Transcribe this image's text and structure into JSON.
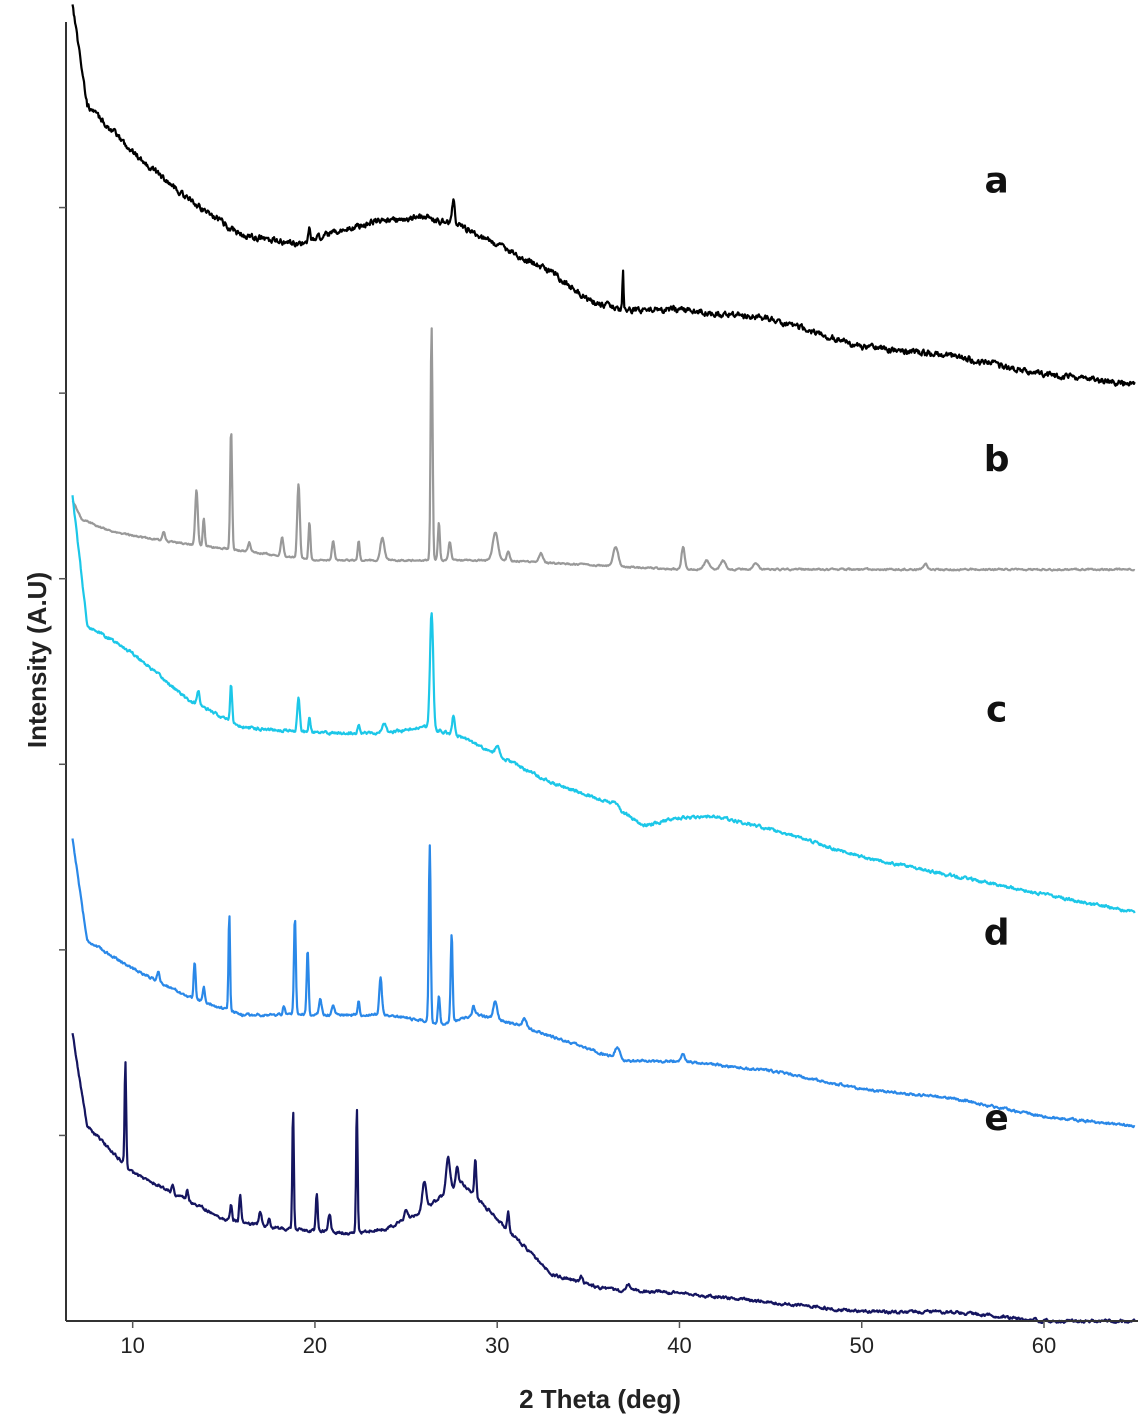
{
  "chart_data": {
    "type": "line",
    "xlabel": "2 Theta (deg)",
    "ylabel": "Intensity (A.U)",
    "xlim": [
      6.5,
      65
    ],
    "xticks": [
      10,
      20,
      30,
      40,
      50,
      60
    ],
    "ylim": [
      0,
      7
    ],
    "yticks": [
      1,
      2,
      3,
      4,
      5,
      6
    ],
    "grid": false,
    "legend": "inline labels at right",
    "series": [
      {
        "name": "a",
        "color": "#000000",
        "offset": 5.6,
        "baseline": [
          [
            6.7,
            1.5
          ],
          [
            7.5,
            0.95
          ],
          [
            10,
            0.7
          ],
          [
            13,
            0.45
          ],
          [
            16,
            0.25
          ],
          [
            19,
            0.2
          ],
          [
            23,
            0.32
          ],
          [
            26,
            0.35
          ],
          [
            28,
            0.3
          ],
          [
            30,
            0.2
          ],
          [
            33,
            0.05
          ],
          [
            35,
            -0.1
          ],
          [
            37,
            -0.15
          ],
          [
            40,
            -0.15
          ],
          [
            45,
            -0.2
          ],
          [
            50,
            -0.35
          ],
          [
            55,
            -0.4
          ],
          [
            60,
            -0.5
          ],
          [
            65,
            -0.55
          ]
        ],
        "peaks": [
          [
            19.7,
            0.06,
            0.15
          ],
          [
            27.6,
            0.12,
            0.2
          ],
          [
            36.9,
            0.2,
            0.08
          ]
        ],
        "noise": 0.03
      },
      {
        "name": "b",
        "color": "#999999",
        "offset": 4.1,
        "baseline": [
          [
            6.7,
            0.32
          ],
          [
            7.2,
            0.22
          ],
          [
            9,
            0.15
          ],
          [
            12,
            0.1
          ],
          [
            20,
            0.0
          ],
          [
            30,
            0.0
          ],
          [
            40,
            -0.05
          ],
          [
            50,
            -0.05
          ],
          [
            65,
            -0.05
          ]
        ],
        "peaks": [
          [
            11.7,
            0.05,
            0.2
          ],
          [
            13.5,
            0.3,
            0.2
          ],
          [
            13.9,
            0.15,
            0.15
          ],
          [
            15.4,
            0.65,
            0.15
          ],
          [
            16.4,
            0.05,
            0.2
          ],
          [
            18.2,
            0.1,
            0.2
          ],
          [
            19.1,
            0.4,
            0.2
          ],
          [
            19.7,
            0.2,
            0.15
          ],
          [
            21,
            0.1,
            0.2
          ],
          [
            22.4,
            0.1,
            0.15
          ],
          [
            23.7,
            0.12,
            0.3
          ],
          [
            26.4,
            1.25,
            0.15
          ],
          [
            26.8,
            0.2,
            0.15
          ],
          [
            27.4,
            0.1,
            0.2
          ],
          [
            29.9,
            0.15,
            0.4
          ],
          [
            30.6,
            0.05,
            0.2
          ],
          [
            32.4,
            0.05,
            0.3
          ],
          [
            36.5,
            0.1,
            0.4
          ],
          [
            40.2,
            0.12,
            0.25
          ],
          [
            41.5,
            0.05,
            0.4
          ],
          [
            42.4,
            0.05,
            0.4
          ],
          [
            44.2,
            0.03,
            0.4
          ],
          [
            53.5,
            0.03,
            0.3
          ]
        ],
        "noise": 0.008
      },
      {
        "name": "c",
        "color": "#1cc7e8",
        "offset": 2.75,
        "baseline": [
          [
            6.7,
            1.7
          ],
          [
            7.5,
            1.0
          ],
          [
            10,
            0.85
          ],
          [
            13,
            0.6
          ],
          [
            16,
            0.45
          ],
          [
            20,
            0.42
          ],
          [
            24,
            0.42
          ],
          [
            26,
            0.45
          ],
          [
            28,
            0.4
          ],
          [
            30,
            0.3
          ],
          [
            33,
            0.15
          ],
          [
            36,
            0.05
          ],
          [
            38,
            -0.08
          ],
          [
            40,
            -0.04
          ],
          [
            42,
            -0.03
          ],
          [
            45,
            -0.1
          ],
          [
            50,
            -0.25
          ],
          [
            55,
            -0.35
          ],
          [
            60,
            -0.45
          ],
          [
            65,
            -0.55
          ]
        ],
        "peaks": [
          [
            13.6,
            0.08,
            0.2
          ],
          [
            15.4,
            0.2,
            0.15
          ],
          [
            19.1,
            0.18,
            0.2
          ],
          [
            19.7,
            0.08,
            0.15
          ],
          [
            22.4,
            0.05,
            0.15
          ],
          [
            23.8,
            0.05,
            0.3
          ],
          [
            26.4,
            0.62,
            0.25
          ],
          [
            27.6,
            0.1,
            0.2
          ],
          [
            30,
            0.05,
            0.3
          ],
          [
            36.5,
            0.03,
            0.4
          ]
        ],
        "noise": 0.015
      },
      {
        "name": "d",
        "color": "#2a88e8",
        "offset": 1.55,
        "baseline": [
          [
            6.7,
            1.05
          ],
          [
            7.5,
            0.5
          ],
          [
            10,
            0.35
          ],
          [
            13,
            0.2
          ],
          [
            16,
            0.1
          ],
          [
            20,
            0.1
          ],
          [
            24,
            0.1
          ],
          [
            27,
            0.05
          ],
          [
            29,
            0.1
          ],
          [
            31,
            0.05
          ],
          [
            34,
            -0.05
          ],
          [
            37,
            -0.15
          ],
          [
            40,
            -0.15
          ],
          [
            45,
            -0.2
          ],
          [
            50,
            -0.3
          ],
          [
            55,
            -0.35
          ],
          [
            60,
            -0.45
          ],
          [
            65,
            -0.5
          ]
        ],
        "peaks": [
          [
            11.4,
            0.05,
            0.2
          ],
          [
            13.4,
            0.2,
            0.15
          ],
          [
            13.9,
            0.08,
            0.15
          ],
          [
            15.3,
            0.52,
            0.12
          ],
          [
            18.3,
            0.05,
            0.15
          ],
          [
            18.9,
            0.52,
            0.15
          ],
          [
            19.6,
            0.35,
            0.15
          ],
          [
            20.3,
            0.08,
            0.2
          ],
          [
            21,
            0.05,
            0.2
          ],
          [
            22.4,
            0.08,
            0.15
          ],
          [
            23.6,
            0.2,
            0.2
          ],
          [
            26.3,
            0.95,
            0.15
          ],
          [
            26.8,
            0.15,
            0.15
          ],
          [
            27.5,
            0.48,
            0.15
          ],
          [
            28.7,
            0.05,
            0.2
          ],
          [
            29.9,
            0.1,
            0.3
          ],
          [
            31.5,
            0.05,
            0.3
          ],
          [
            36.6,
            0.06,
            0.4
          ],
          [
            40.2,
            0.04,
            0.3
          ]
        ],
        "noise": 0.012
      },
      {
        "name": "e",
        "color": "#151560",
        "offset": 0.55,
        "baseline": [
          [
            6.7,
            1.0
          ],
          [
            7.5,
            0.5
          ],
          [
            9,
            0.35
          ],
          [
            10,
            0.25
          ],
          [
            12,
            0.15
          ],
          [
            15,
            0.0
          ],
          [
            18,
            -0.05
          ],
          [
            22,
            -0.08
          ],
          [
            24,
            -0.05
          ],
          [
            26,
            0.05
          ],
          [
            28,
            0.2
          ],
          [
            29.5,
            0.05
          ],
          [
            31,
            -0.1
          ],
          [
            33,
            -0.3
          ],
          [
            36,
            -0.38
          ],
          [
            40,
            -0.4
          ],
          [
            45,
            -0.45
          ],
          [
            50,
            -0.5
          ],
          [
            55,
            -0.5
          ],
          [
            60,
            -0.55
          ],
          [
            65,
            -0.55
          ]
        ],
        "peaks": [
          [
            9.6,
            0.55,
            0.12
          ],
          [
            12.2,
            0.05,
            0.15
          ],
          [
            13,
            0.05,
            0.15
          ],
          [
            15.4,
            0.08,
            0.15
          ],
          [
            15.9,
            0.15,
            0.15
          ],
          [
            17,
            0.08,
            0.2
          ],
          [
            17.5,
            0.05,
            0.15
          ],
          [
            18.8,
            0.65,
            0.12
          ],
          [
            20.1,
            0.2,
            0.15
          ],
          [
            20.8,
            0.1,
            0.2
          ],
          [
            22.3,
            0.68,
            0.12
          ],
          [
            25,
            0.05,
            0.2
          ],
          [
            26,
            0.15,
            0.3
          ],
          [
            27.3,
            0.18,
            0.3
          ],
          [
            27.8,
            0.1,
            0.2
          ],
          [
            28.8,
            0.2,
            0.15
          ],
          [
            30.6,
            0.1,
            0.15
          ],
          [
            34.6,
            0.04,
            0.2
          ],
          [
            37.2,
            0.03,
            0.3
          ]
        ],
        "noise": 0.015
      }
    ]
  }
}
